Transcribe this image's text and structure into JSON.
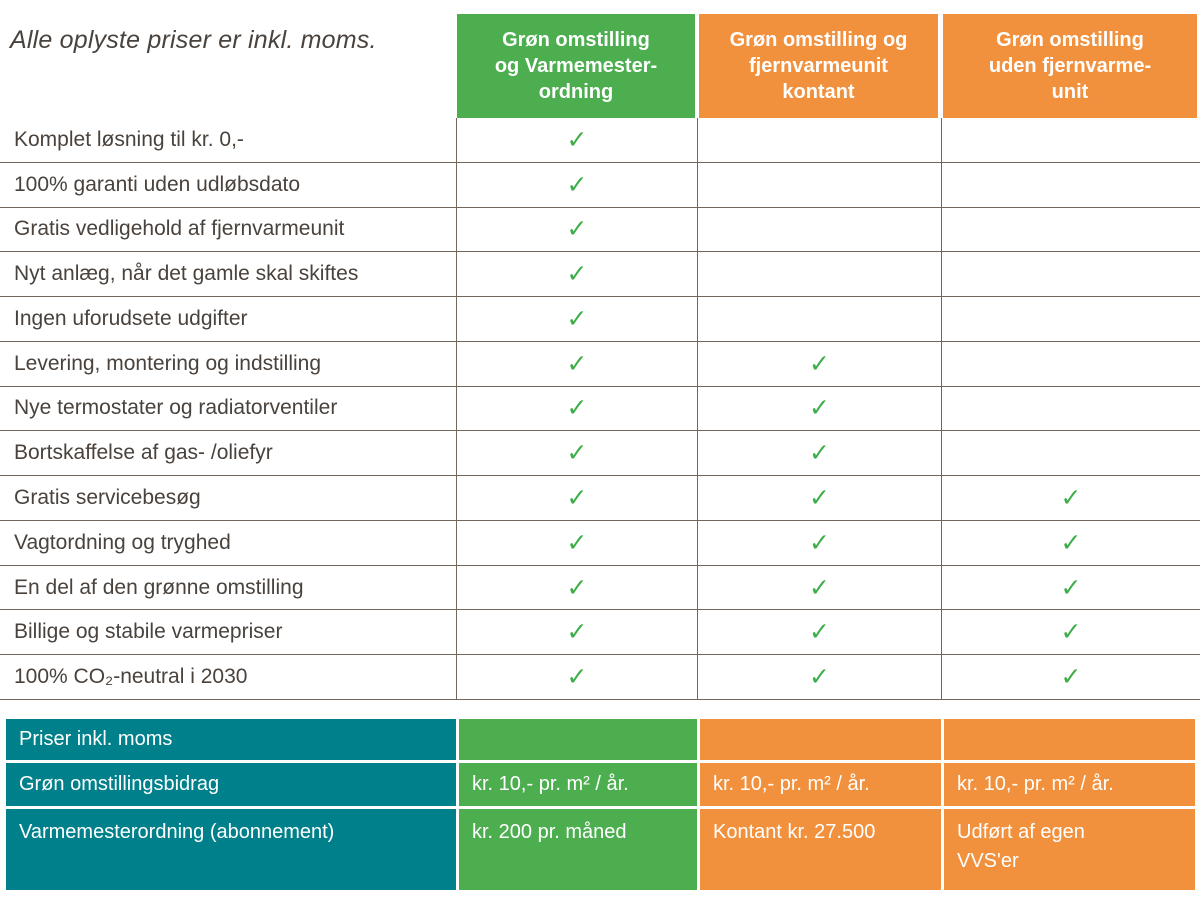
{
  "note": "Alle oplyste priser er inkl. moms.",
  "colors": {
    "green": "#4DAE50",
    "orange": "#F2913D",
    "teal": "#00808A",
    "check": "#3FAE4A",
    "grid_line": "#73675C",
    "body_text": "#4A423C"
  },
  "icons": {
    "check": "✓"
  },
  "table": {
    "columns": [
      "Grøn omstilling\nog Varmemester-\nordning",
      "Grøn omstilling og\nfjernvarmeunit\nkontant",
      "Grøn omstilling\nuden fjernvarme-\nunit"
    ],
    "rows": [
      {
        "label": "Komplet løsning til kr. 0,-",
        "checks": [
          true,
          false,
          false
        ]
      },
      {
        "label": "100% garanti uden udløbsdato",
        "checks": [
          true,
          false,
          false
        ]
      },
      {
        "label": "Gratis vedligehold af fjernvarmeunit",
        "checks": [
          true,
          false,
          false
        ]
      },
      {
        "label": "Nyt anlæg, når det gamle skal skiftes",
        "checks": [
          true,
          false,
          false
        ]
      },
      {
        "label": "Ingen uforudsete udgifter",
        "checks": [
          true,
          false,
          false
        ]
      },
      {
        "label": "Levering, montering og indstilling",
        "checks": [
          true,
          true,
          false
        ]
      },
      {
        "label": "Nye termostater og radiatorventiler",
        "checks": [
          true,
          true,
          false
        ]
      },
      {
        "label": "Bortskaffelse af gas- /oliefyr",
        "checks": [
          true,
          true,
          false
        ]
      },
      {
        "label": "Gratis servicebesøg",
        "checks": [
          true,
          true,
          true
        ]
      },
      {
        "label": "Vagtordning og tryghed",
        "checks": [
          true,
          true,
          true
        ]
      },
      {
        "label": "En del af den grønne omstilling",
        "checks": [
          true,
          true,
          true
        ]
      },
      {
        "label": "Billige og stabile varmepriser",
        "checks": [
          true,
          true,
          true
        ]
      },
      {
        "label": "100% CO₂-neutral i 2030",
        "checks": [
          true,
          true,
          true
        ]
      }
    ]
  },
  "prices": {
    "rows": [
      {
        "label": "Priser inkl. moms",
        "values": [
          "",
          "",
          ""
        ]
      },
      {
        "label": "Grøn omstillingsbidrag",
        "values": [
          "kr. 10,- pr. m² / år.",
          "kr. 10,- pr. m² / år.",
          "kr. 10,- pr. m² / år."
        ]
      },
      {
        "label": "Varmemesterordning (abonnement)",
        "values": [
          "kr. 200 pr. måned",
          "Kontant kr. 27.500",
          "Udført af egen\nVVS'er"
        ]
      }
    ]
  }
}
